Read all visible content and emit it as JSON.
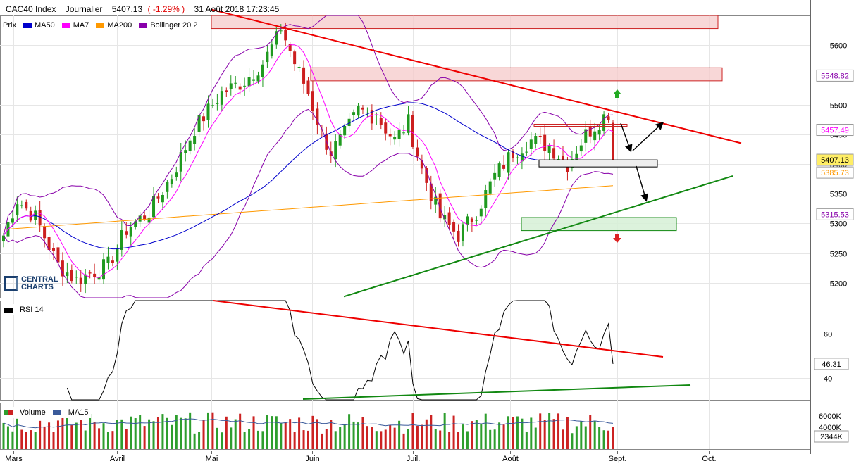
{
  "header": {
    "symbol": "CAC40 Index",
    "period": "Journalier",
    "last": "5407.13",
    "change": "( -1.29% )",
    "datetime": "31 Août 2018 17:23:45"
  },
  "legend": {
    "items": [
      {
        "label": "Prix",
        "color": ""
      },
      {
        "label": "MA50",
        "color": "#0000cc"
      },
      {
        "label": "MA7",
        "color": "#ff00ff"
      },
      {
        "label": "MA200",
        "color": "#ff9900"
      },
      {
        "label": "Bollinger 20 2",
        "color": "#8800aa"
      }
    ]
  },
  "logo": {
    "line1": "CENTRAL",
    "line2": "CHARTS"
  },
  "rsi_legend": {
    "label": "RSI 14"
  },
  "volume_legend": {
    "items": [
      {
        "label": "Volume",
        "color": "#2e9e2e"
      },
      {
        "label": "MA15",
        "color": "#3a5a9a"
      }
    ]
  },
  "price_labels": [
    {
      "text": "5548.82",
      "color": "#8800aa"
    },
    {
      "text": "5457.49",
      "color": "#ff00ff"
    },
    {
      "text": "5407.13",
      "color": "#000000"
    },
    {
      "text": "5385.73",
      "color": "#ff9900"
    },
    {
      "text": "5315.53",
      "color": "#8800aa"
    }
  ],
  "rsi_value_label": "46.31",
  "volume_value_label": "2344K",
  "colors": {
    "up": "#1f9a1f",
    "down": "#cc1f1f",
    "trend_down": "#ee0000",
    "trend_up": "#118811"
  },
  "chart_data": [
    {
      "type": "candlestick",
      "title": "CAC40 Index Journalier",
      "y_ticks": [
        5200,
        5250,
        5300,
        5350,
        5400,
        5450,
        5500,
        5550,
        5600
      ],
      "ylim": [
        5175,
        5650
      ],
      "x_ticks": [
        "Mars",
        "Avril",
        "Mai",
        "Juin",
        "Juil.",
        "Août",
        "Sept.",
        "Oct."
      ],
      "date_range": [
        "2018-02-26",
        "2018-08-31"
      ],
      "key_values": {
        "last_close": 5407.13,
        "ma7": 5457.49,
        "ma200": 5385.73,
        "bollinger_upper": 5548.82,
        "bollinger_lower": 5315.53
      },
      "resistance_zones": [
        [
          5628,
          5650
        ],
        [
          5540,
          5562
        ]
      ],
      "support_zone": [
        5288,
        5310
      ],
      "grid": true
    },
    {
      "type": "line",
      "title": "RSI 14",
      "y_ticks": [
        40,
        60
      ],
      "ylim": [
        30,
        75
      ],
      "last_value": 46.31
    },
    {
      "type": "bar",
      "title": "Volume",
      "y_ticks": [
        "6000K",
        "4000K"
      ],
      "last_value": "2344K"
    }
  ]
}
